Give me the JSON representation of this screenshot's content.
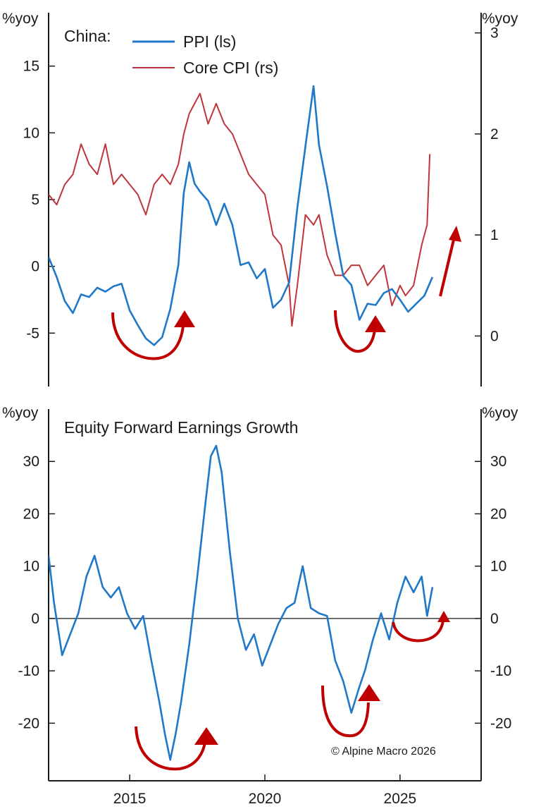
{
  "colors": {
    "ppi": "#1f78c8",
    "core_cpi": "#c0353a",
    "earnings": "#1f78c8",
    "arrow": "#c00000",
    "axis": "#1a1a1a"
  },
  "chart_data": [
    {
      "type": "line",
      "title": "China:",
      "ylabel_left": "%yoy",
      "ylabel_right": "%yoy",
      "ylim_left": [
        -9,
        19
      ],
      "ylim_right": [
        -0.5,
        3.2
      ],
      "yticks_left": [
        15,
        10,
        5,
        0,
        -5
      ],
      "yticks_right": [
        3,
        2,
        1,
        0
      ],
      "x_range": [
        2012.0,
        2028.0
      ],
      "legend": [
        "PPI (ls)",
        "Core CPI (rs)"
      ],
      "series": [
        {
          "name": "PPI (ls)",
          "axis": "left",
          "x": [
            2012.0,
            2012.3,
            2012.6,
            2012.9,
            2013.2,
            2013.5,
            2013.8,
            2014.1,
            2014.4,
            2014.7,
            2015.0,
            2015.3,
            2015.6,
            2015.9,
            2016.2,
            2016.5,
            2016.8,
            2017.0,
            2017.2,
            2017.4,
            2017.6,
            2017.9,
            2018.2,
            2018.5,
            2018.8,
            2019.1,
            2019.4,
            2019.7,
            2020.0,
            2020.3,
            2020.6,
            2020.9,
            2021.2,
            2021.5,
            2021.8,
            2022.0,
            2022.3,
            2022.6,
            2022.9,
            2023.2,
            2023.5,
            2023.8,
            2024.1,
            2024.4,
            2024.7,
            2025.0,
            2025.3,
            2025.6,
            2025.9,
            2026.2
          ],
          "values": [
            0.7,
            -0.8,
            -2.6,
            -3.5,
            -2.1,
            -2.3,
            -1.6,
            -1.9,
            -1.5,
            -1.3,
            -3.3,
            -4.4,
            -5.4,
            -5.9,
            -5.3,
            -3.2,
            0.1,
            5.5,
            7.8,
            6.2,
            5.6,
            4.9,
            3.1,
            4.7,
            3.1,
            0.1,
            0.3,
            -0.9,
            -0.2,
            -3.1,
            -2.5,
            -1.2,
            4.4,
            9.0,
            13.5,
            9.1,
            6.0,
            2.5,
            -0.7,
            -1.4,
            -4.0,
            -2.8,
            -2.9,
            -2.0,
            -1.7,
            -2.5,
            -3.4,
            -2.8,
            -2.2,
            -0.8
          ]
        },
        {
          "name": "Core CPI (rs)",
          "axis": "right",
          "x": [
            2012.0,
            2012.3,
            2012.6,
            2012.9,
            2013.2,
            2013.5,
            2013.8,
            2014.1,
            2014.4,
            2014.7,
            2015.0,
            2015.3,
            2015.6,
            2015.9,
            2016.2,
            2016.5,
            2016.8,
            2017.0,
            2017.2,
            2017.4,
            2017.6,
            2017.9,
            2018.2,
            2018.5,
            2018.8,
            2019.1,
            2019.4,
            2019.7,
            2020.0,
            2020.3,
            2020.6,
            2020.9,
            2021.0,
            2021.2,
            2021.5,
            2021.8,
            2022.0,
            2022.3,
            2022.6,
            2022.9,
            2023.2,
            2023.5,
            2023.8,
            2024.1,
            2024.4,
            2024.7,
            2025.0,
            2025.2,
            2025.5,
            2025.8,
            2026.0,
            2026.1
          ],
          "values": [
            1.4,
            1.3,
            1.5,
            1.6,
            1.9,
            1.7,
            1.6,
            1.9,
            1.5,
            1.6,
            1.5,
            1.4,
            1.2,
            1.5,
            1.6,
            1.5,
            1.7,
            2.0,
            2.2,
            2.3,
            2.4,
            2.1,
            2.3,
            2.1,
            2.0,
            1.8,
            1.6,
            1.5,
            1.4,
            1.0,
            0.9,
            0.5,
            0.1,
            0.5,
            1.2,
            1.1,
            1.2,
            0.8,
            0.6,
            0.6,
            0.7,
            0.7,
            0.5,
            0.6,
            0.7,
            0.3,
            0.5,
            0.4,
            0.5,
            0.9,
            1.1,
            1.8
          ]
        }
      ],
      "annotations": [
        "upturn-arrow-2016",
        "upturn-arrow-2023",
        "rising-arrow-2026"
      ]
    },
    {
      "type": "line",
      "title": "Equity Forward Earnings Growth",
      "ylabel_left": "%yoy",
      "ylabel_right": "%yoy",
      "ylim": [
        -31,
        40
      ],
      "yticks": [
        30,
        20,
        10,
        0,
        -10,
        -20
      ],
      "x_range": [
        2012.0,
        2028.0
      ],
      "xticks": [
        2015,
        2020,
        2025
      ],
      "zero_line": true,
      "credit": "© Alpine Macro 2026",
      "series": [
        {
          "name": "Equity Forward Earnings Growth",
          "x": [
            2012.0,
            2012.2,
            2012.5,
            2012.8,
            2013.1,
            2013.4,
            2013.7,
            2014.0,
            2014.3,
            2014.6,
            2014.9,
            2015.2,
            2015.5,
            2015.8,
            2016.1,
            2016.3,
            2016.5,
            2016.7,
            2016.9,
            2017.2,
            2017.5,
            2017.8,
            2018.0,
            2018.2,
            2018.4,
            2018.7,
            2019.0,
            2019.3,
            2019.6,
            2019.9,
            2020.2,
            2020.5,
            2020.8,
            2021.1,
            2021.4,
            2021.7,
            2022.0,
            2022.3,
            2022.6,
            2022.9,
            2023.2,
            2023.5,
            2023.7,
            2024.0,
            2024.3,
            2024.6,
            2024.9,
            2025.2,
            2025.5,
            2025.8,
            2026.0,
            2026.2
          ],
          "values": [
            12.0,
            3.0,
            -7.0,
            -3.0,
            1.0,
            8.0,
            12.0,
            6.0,
            4.0,
            6.0,
            1.0,
            -2.0,
            0.5,
            -8.0,
            -16.0,
            -22.0,
            -27.0,
            -22.0,
            -16.0,
            -5.0,
            8.0,
            22.0,
            31.0,
            33.0,
            28.0,
            13.0,
            0.0,
            -6.0,
            -3.0,
            -9.0,
            -5.0,
            -1.0,
            2.0,
            3.0,
            10.0,
            2.0,
            1.0,
            0.5,
            -8.0,
            -12.0,
            -18.0,
            -13.0,
            -10.0,
            -4.0,
            1.0,
            -4.0,
            3.0,
            8.0,
            5.0,
            8.0,
            0.5,
            6.0
          ]
        }
      ],
      "annotations": [
        "upturn-arrow-2016",
        "upturn-arrow-2023",
        "upturn-arrow-2025"
      ]
    }
  ]
}
